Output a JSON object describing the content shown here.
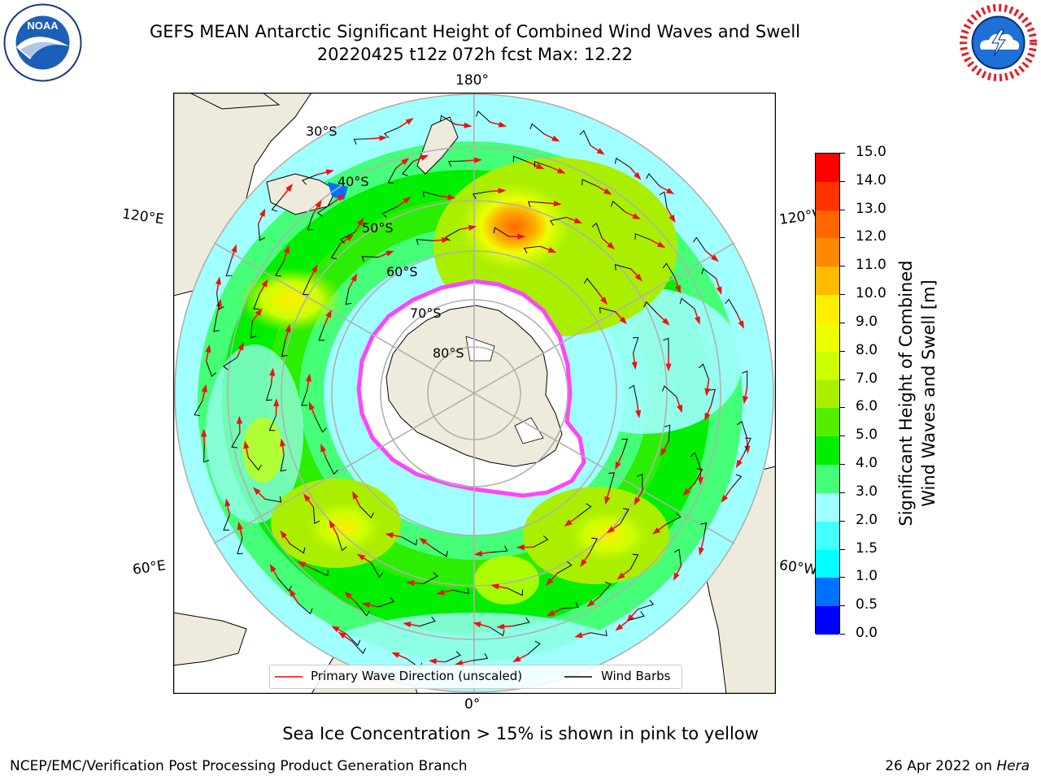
{
  "title": {
    "line1": "GEFS MEAN Antarctic Significant Height of Combined Wind Waves and Swell",
    "line2": "20220425 t12z 072h fcst   Max: 12.22"
  },
  "logos": {
    "left": {
      "name": "NOAA",
      "text": "NOAA",
      "ring_text": "NATIONAL OCEANIC AND ATMOSPHERIC ADMINISTRATION U.S. DEPARTMENT OF COMMERCE"
    },
    "right": {
      "name": "National Weather Service",
      "ring_text": "NATIONAL WEATHER SERVICE"
    }
  },
  "map": {
    "projection": "south polar stereographic",
    "longitude_labels": {
      "top": "180°",
      "bottom": "0°",
      "upper_left": "120°E",
      "upper_right": "120°W",
      "lower_left": "60°E",
      "lower_right": "60°W"
    },
    "latitude_labels": [
      "30°S",
      "40°S",
      "50°S",
      "60°S",
      "70°S",
      "80°S"
    ],
    "max_value": 12.22,
    "colors": {
      "land": "#efebdc",
      "ice_shelf": "#ffffff",
      "sea_ice_edge": "#ff44ff",
      "wave_arrow": "#ee1111",
      "wind_barb": "#000000",
      "grid": "#b0b0b0"
    }
  },
  "legend": {
    "primary_wave": {
      "label": "Primary Wave Direction (unscaled)",
      "color": "#ff0000"
    },
    "wind_barbs": {
      "label": "Wind Barbs",
      "color": "#000000"
    }
  },
  "colorbar": {
    "label_line1": "Significant Height of Combined",
    "label_line2": "Wind Waves and Swell [m]",
    "ticks": [
      "0.0",
      "0.5",
      "1.0",
      "1.5",
      "2.0",
      "3.0",
      "4.0",
      "5.0",
      "6.0",
      "7.0",
      "8.0",
      "9.0",
      "10.0",
      "11.0",
      "12.0",
      "13.0",
      "14.0",
      "15.0"
    ],
    "bin_colors": [
      "#0000ff",
      "#0070ff",
      "#00ffff",
      "#44ffff",
      "#a0ffff",
      "#44ff77",
      "#00ee00",
      "#55ee00",
      "#aaee00",
      "#ccff00",
      "#eeff00",
      "#ffee00",
      "#ffbb00",
      "#ff8800",
      "#ff6600",
      "#ff3300",
      "#ff0000"
    ]
  },
  "notes": {
    "sea_ice": "Sea Ice Concentration > 15% is shown in pink to yellow",
    "footer_left": "NCEP/EMC/Verification Post Processing Product Generation Branch",
    "footer_right_date": "26 Apr 2022 on ",
    "footer_right_host": "Hera"
  }
}
